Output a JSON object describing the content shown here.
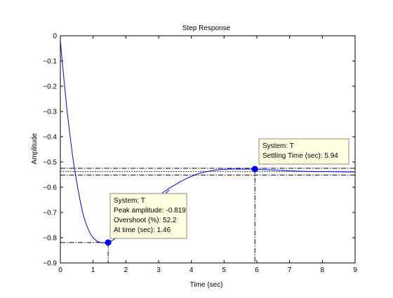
{
  "chart_data": {
    "type": "line",
    "title": "Step Response",
    "xlabel": "Time (sec)",
    "ylabel": "Amplitude",
    "xlim": [
      0,
      9
    ],
    "ylim": [
      -0.9,
      0
    ],
    "xticks": [
      0,
      1,
      2,
      3,
      4,
      5,
      6,
      7,
      8,
      9
    ],
    "xtick_labels": [
      "0",
      "1",
      "2",
      "3",
      "4",
      "5",
      "6",
      "7",
      "8",
      "9"
    ],
    "yticks": [
      0,
      -0.1,
      -0.2,
      -0.3,
      -0.4,
      -0.5,
      -0.6,
      -0.7,
      -0.8,
      -0.9
    ],
    "ytick_labels": [
      "0",
      "−0.1",
      "−0.2",
      "−0.3",
      "−0.4",
      "−0.5",
      "−0.6",
      "−0.7",
      "−0.8",
      "−0.9"
    ],
    "grid": false,
    "line_color": "#0000ff",
    "guide_color": "#000000",
    "series": [
      {
        "name": "T",
        "x": [
          0,
          0.1,
          0.2,
          0.3,
          0.4,
          0.5,
          0.6,
          0.7,
          0.8,
          0.9,
          1.0,
          1.1,
          1.2,
          1.3,
          1.4,
          1.46,
          1.6,
          1.8,
          2.0,
          2.2,
          2.4,
          2.6,
          2.8,
          3.0,
          3.2,
          3.4,
          3.6,
          3.8,
          4.0,
          4.2,
          4.4,
          4.6,
          4.8,
          5.0,
          5.2,
          5.4,
          5.6,
          5.8,
          5.94,
          6.2,
          6.5,
          6.8,
          7.0,
          7.5,
          8.0,
          8.5,
          9.0
        ],
        "y": [
          -0.02,
          -0.16,
          -0.29,
          -0.4,
          -0.5,
          -0.58,
          -0.65,
          -0.71,
          -0.75,
          -0.78,
          -0.8,
          -0.812,
          -0.818,
          -0.82,
          -0.82,
          -0.819,
          -0.81,
          -0.79,
          -0.765,
          -0.735,
          -0.705,
          -0.678,
          -0.655,
          -0.634,
          -0.615,
          -0.598,
          -0.583,
          -0.569,
          -0.557,
          -0.547,
          -0.54,
          -0.535,
          -0.531,
          -0.529,
          -0.528,
          -0.528,
          -0.528,
          -0.528,
          -0.528,
          -0.53,
          -0.532,
          -0.534,
          -0.535,
          -0.537,
          -0.538,
          -0.539,
          -0.54
        ]
      }
    ],
    "reference_lines": {
      "final_value": -0.538,
      "settling_band": [
        -0.525,
        -0.552
      ],
      "peak_time": 1.46,
      "peak_amplitude": -0.819,
      "settling_time": 5.94,
      "settling_amplitude": -0.528
    },
    "markers": [
      {
        "x": 1.46,
        "y": -0.819
      },
      {
        "x": 5.94,
        "y": -0.528
      }
    ],
    "annotations": [
      {
        "kind": "peak",
        "lines": [
          "System: T",
          "Peak amplitude: -0.819",
          "Overshoot (%): 52.2",
          "At time (sec): 1.46"
        ]
      },
      {
        "kind": "settling",
        "lines": [
          "System: T",
          "Settling Time (sec): 5.94"
        ]
      }
    ]
  }
}
